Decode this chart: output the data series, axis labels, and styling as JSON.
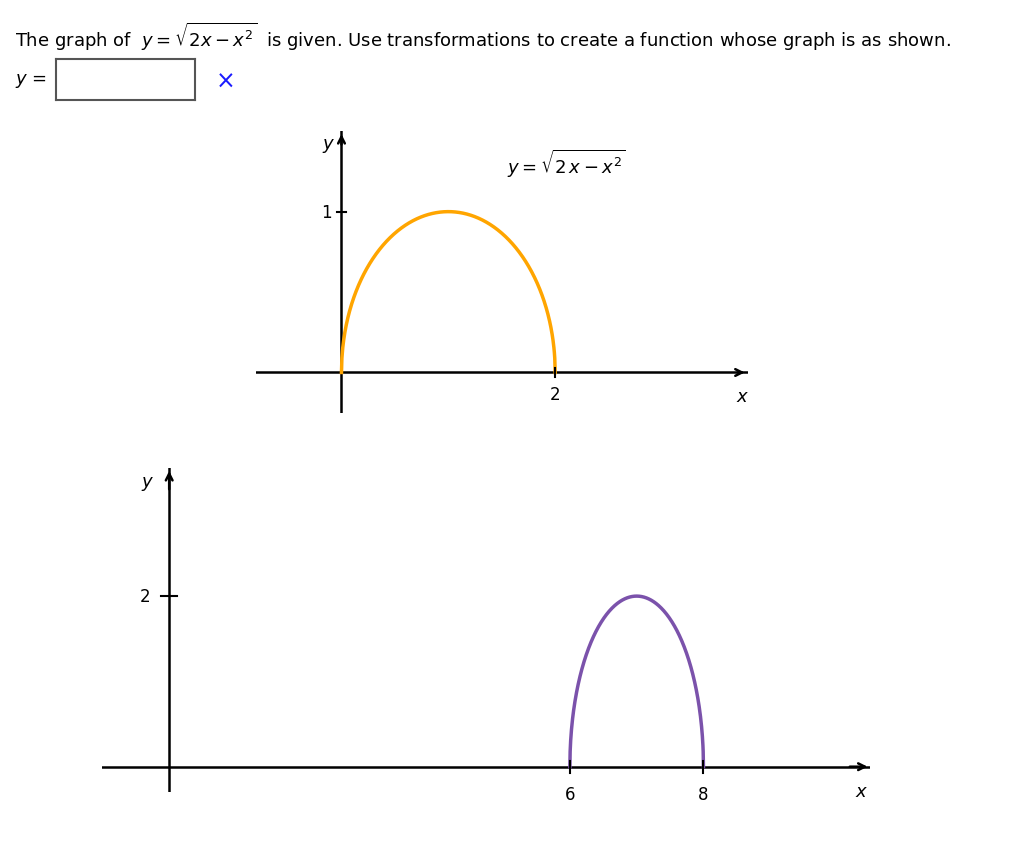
{
  "background_color": "#ffffff",
  "font_color": "#000000",
  "close_x_color": "#1a1aff",
  "top_graph": {
    "x_min": 0,
    "x_max": 2,
    "color": "#FFA500",
    "linewidth": 2.5,
    "xlim": [
      -0.8,
      3.8
    ],
    "ylim": [
      -0.25,
      1.5
    ],
    "xtick": [
      2
    ],
    "ytick": [
      1
    ],
    "axis_color": "#000000",
    "eq_x": 1.55,
    "eq_y": 1.3
  },
  "bottom_graph": {
    "x_min": 6,
    "x_max": 8,
    "shift": 6,
    "scale": 2,
    "color": "#7B52AB",
    "linewidth": 2.5,
    "xlim": [
      -1.0,
      10.5
    ],
    "ylim": [
      -0.3,
      3.5
    ],
    "xtick": [
      6,
      8
    ],
    "ytick": [
      2
    ],
    "axis_color": "#000000"
  }
}
